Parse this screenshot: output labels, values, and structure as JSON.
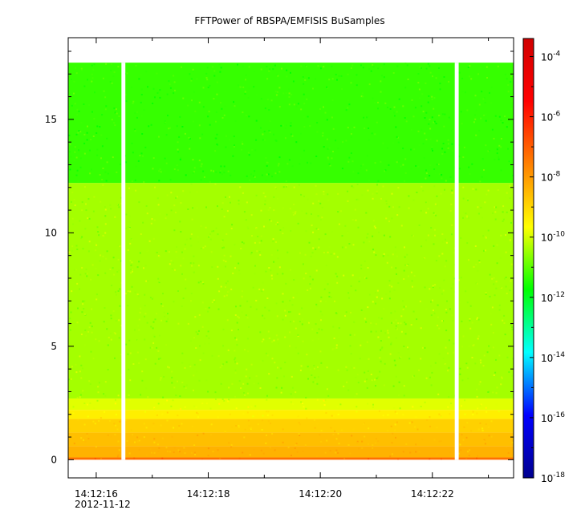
{
  "chart_data": {
    "type": "heatmap",
    "title": "FFTPower of RBSPA/EMFISIS  BuSamples",
    "xlabel": "",
    "ylabel": "",
    "x_ticks": [
      "14:12:16",
      "14:12:18",
      "14:12:20",
      "14:12:22"
    ],
    "x_tick_values_sec": [
      16,
      18,
      20,
      22
    ],
    "x_date_label": "2012-11-12",
    "xlim_sec": [
      15.5,
      23.45
    ],
    "y_ticks": [
      "0",
      "5",
      "10",
      "15"
    ],
    "y_tick_values": [
      0,
      5,
      10,
      15
    ],
    "ylim": [
      -0.8,
      18.6
    ],
    "data_extent": {
      "x_sec": [
        15.5,
        23.45
      ],
      "y": [
        0,
        17.5
      ]
    },
    "gaps_sec": [
      [
        16.45,
        16.52
      ],
      [
        22.4,
        22.47
      ]
    ],
    "bands": [
      {
        "y": [
          0,
          0.1
        ],
        "log10_power": -7.3
      },
      {
        "y": [
          0.1,
          0.6
        ],
        "log10_power": -8.4
      },
      {
        "y": [
          0.6,
          1.2
        ],
        "log10_power": -8.6
      },
      {
        "y": [
          1.2,
          1.8
        ],
        "log10_power": -8.9
      },
      {
        "y": [
          1.8,
          2.2
        ],
        "log10_power": -9.4
      },
      {
        "y": [
          2.2,
          2.7
        ],
        "log10_power": -9.9
      },
      {
        "y": [
          2.7,
          12.2
        ],
        "log10_power": -10.4
      },
      {
        "y": [
          12.2,
          17.5
        ],
        "log10_power": -11.3
      }
    ],
    "colorbar": {
      "scale": "log",
      "range_log10": [
        -18,
        -3.4
      ],
      "tick_exponents": [
        -4,
        -6,
        -8,
        -10,
        -12,
        -14,
        -16,
        -18
      ],
      "base_label": "10",
      "colors": [
        "#00008f",
        "#0000ff",
        "#00ffff",
        "#00ff00",
        "#ffff00",
        "#ff8000",
        "#ff0000",
        "#d00000"
      ]
    },
    "grid": false,
    "legend": "none"
  }
}
